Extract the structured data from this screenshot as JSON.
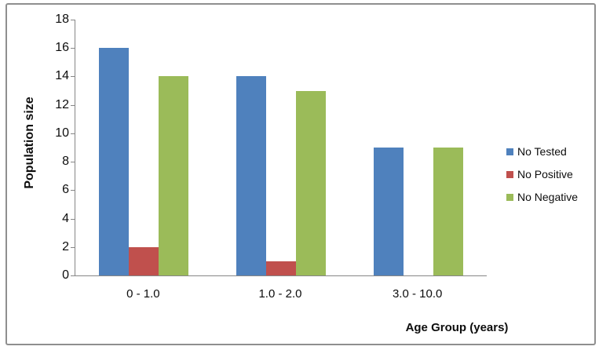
{
  "window": {
    "background": "#ffffff",
    "border_color": "#8f8f8f"
  },
  "chart_data": {
    "type": "bar",
    "title": "",
    "xlabel": "Age Group (years)",
    "ylabel": "Population size",
    "categories": [
      "0 - 1.0",
      "1.0 - 2.0",
      "3.0 - 10.0"
    ],
    "series": [
      {
        "name": "No Tested",
        "color": "#4F81BD",
        "values": [
          16,
          14,
          9
        ]
      },
      {
        "name": "No Positive",
        "color": "#C0504D",
        "values": [
          2,
          1,
          0
        ]
      },
      {
        "name": "No Negative",
        "color": "#9BBB59",
        "values": [
          14,
          13,
          9
        ]
      }
    ],
    "ylim": [
      0,
      18
    ],
    "ytick_step": 2,
    "yticks": [
      0,
      2,
      4,
      6,
      8,
      10,
      12,
      14,
      16,
      18
    ],
    "grid": false,
    "legend_position": "right",
    "axis_color": "#868686"
  }
}
